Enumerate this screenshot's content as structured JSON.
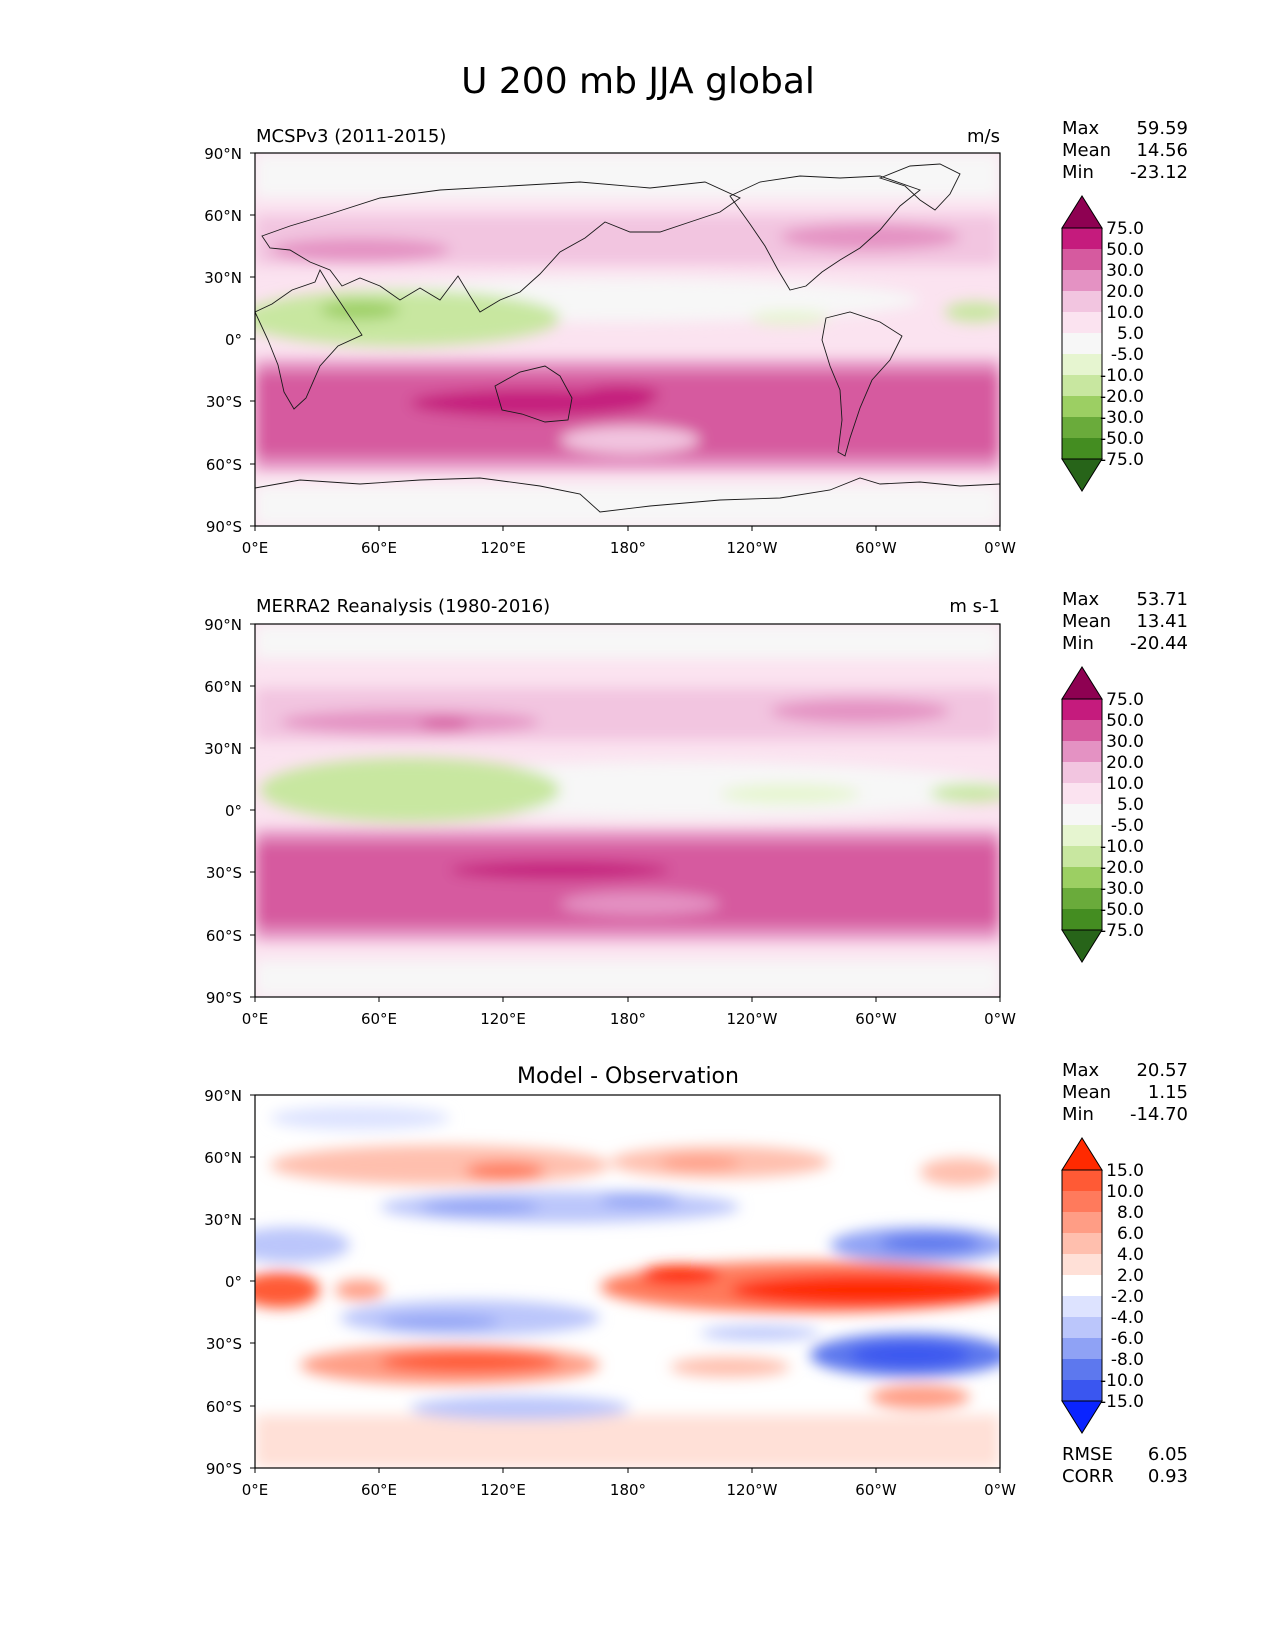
{
  "title": "U 200 mb JJA global",
  "panels": [
    {
      "id": "test",
      "title_left": "MCSPv3 (2011-2015)",
      "title_right": "m/s",
      "title_center": "",
      "stats": [
        {
          "label": "Max",
          "value": "59.59"
        },
        {
          "label": "Mean",
          "value": "14.56"
        },
        {
          "label": "Min",
          "value": "-23.12"
        }
      ],
      "colorbar": "wind"
    },
    {
      "id": "reference",
      "title_left": "MERRA2 Reanalysis (1980-2016)",
      "title_right": "m s-1",
      "title_center": "",
      "stats": [
        {
          "label": "Max",
          "value": "53.71"
        },
        {
          "label": "Mean",
          "value": "13.41"
        },
        {
          "label": "Min",
          "value": "-20.44"
        }
      ],
      "colorbar": "wind"
    },
    {
      "id": "difference",
      "title_left": "",
      "title_right": "",
      "title_center": "Model - Observation",
      "stats": [
        {
          "label": "Max",
          "value": "20.57"
        },
        {
          "label": "Mean",
          "value": "1.15"
        },
        {
          "label": "Min",
          "value": "-14.70"
        }
      ],
      "extra_stats": [
        {
          "label": "RMSE",
          "value": "6.05"
        },
        {
          "label": "CORR",
          "value": "0.93"
        }
      ],
      "colorbar": "diff"
    }
  ],
  "chart_data": [
    {
      "type": "heatmap",
      "subtype": "filled-contour map",
      "title": "MCSPv3 (2011-2015)",
      "units": "m/s",
      "x_ticks": [
        "0°E",
        "60°E",
        "120°E",
        "180°",
        "120°W",
        "60°W",
        "0°W"
      ],
      "y_ticks": [
        "90°N",
        "60°N",
        "30°N",
        "0°",
        "30°S",
        "60°S",
        "90°S"
      ],
      "xlim": [
        0,
        360
      ],
      "ylim": [
        -90,
        90
      ],
      "stats": {
        "max": 59.59,
        "mean": 14.56,
        "min": -23.12
      },
      "features": [
        {
          "lon": [
            85,
            125
          ],
          "lat": [
            -36,
            -22
          ],
          "value": 55
        },
        {
          "lon": [
            190,
            240
          ],
          "lat": [
            -32,
            -20
          ],
          "value": 52
        },
        {
          "lon": [
            0,
            360
          ],
          "lat": [
            -50,
            -20
          ],
          "value": 35
        },
        {
          "lon": [
            20,
            70
          ],
          "lat": [
            40,
            48
          ],
          "value": 32
        },
        {
          "lon": [
            270,
            330
          ],
          "lat": [
            42,
            50
          ],
          "value": 28
        },
        {
          "lon": [
            20,
            120
          ],
          "lat": [
            0,
            20
          ],
          "value": -18
        },
        {
          "lon": [
            310,
            360
          ],
          "lat": [
            5,
            15
          ],
          "value": -10
        }
      ]
    },
    {
      "type": "heatmap",
      "subtype": "filled-contour map",
      "title": "MERRA2 Reanalysis (1980-2016)",
      "units": "m s-1",
      "x_ticks": [
        "0°E",
        "60°E",
        "120°E",
        "180°",
        "120°W",
        "60°W",
        "0°W"
      ],
      "y_ticks": [
        "90°N",
        "60°N",
        "30°N",
        "0°",
        "30°S",
        "60°S",
        "90°S"
      ],
      "xlim": [
        0,
        360
      ],
      "ylim": [
        -90,
        90
      ],
      "stats": {
        "max": 53.71,
        "mean": 13.41,
        "min": -20.44
      },
      "features": [
        {
          "lon": [
            100,
            190
          ],
          "lat": [
            -32,
            -25
          ],
          "value": 52
        },
        {
          "lon": [
            0,
            360
          ],
          "lat": [
            -50,
            -20
          ],
          "value": 35
        },
        {
          "lon": [
            40,
            90
          ],
          "lat": [
            40,
            46
          ],
          "value": 32
        },
        {
          "lon": [
            270,
            320
          ],
          "lat": [
            42,
            50
          ],
          "value": 26
        },
        {
          "lon": [
            20,
            130
          ],
          "lat": [
            0,
            25
          ],
          "value": -16
        },
        {
          "lon": [
            220,
            300
          ],
          "lat": [
            5,
            12
          ],
          "value": -8
        }
      ]
    },
    {
      "type": "heatmap",
      "subtype": "filled-contour map",
      "title": "Model - Observation",
      "units": "",
      "x_ticks": [
        "0°E",
        "60°E",
        "120°E",
        "180°",
        "120°W",
        "60°W",
        "0°W"
      ],
      "y_ticks": [
        "90°N",
        "60°N",
        "30°N",
        "0°",
        "30°S",
        "60°S",
        "90°S"
      ],
      "xlim": [
        0,
        360
      ],
      "ylim": [
        -90,
        90
      ],
      "stats": {
        "max": 20.57,
        "mean": 1.15,
        "min": -14.7,
        "rmse": 6.05,
        "corr": 0.93
      },
      "features": [
        {
          "lon": [
            180,
            360
          ],
          "lat": [
            -8,
            8
          ],
          "value": 16
        },
        {
          "lon": [
            0,
            20
          ],
          "lat": [
            -5,
            5
          ],
          "value": 15
        },
        {
          "lon": [
            70,
            150
          ],
          "lat": [
            -40,
            -25
          ],
          "value": 12
        },
        {
          "lon": [
            90,
            130
          ],
          "lat": [
            45,
            55
          ],
          "value": 10
        },
        {
          "lon": [
            190,
            240
          ],
          "lat": [
            50,
            60
          ],
          "value": 9
        },
        {
          "lon": [
            290,
            350
          ],
          "lat": [
            -35,
            -25
          ],
          "value": -12
        },
        {
          "lon": [
            300,
            350
          ],
          "lat": [
            15,
            25
          ],
          "value": -11
        },
        {
          "lon": [
            90,
            200
          ],
          "lat": [
            25,
            35
          ],
          "value": -8
        },
        {
          "lon": [
            60,
            150
          ],
          "lat": [
            -20,
            -10
          ],
          "value": -7
        }
      ]
    }
  ],
  "colorbars": {
    "wind": {
      "labels": [
        "75.0",
        "50.0",
        "30.0",
        "20.0",
        "10.0",
        "5.0",
        "-5.0",
        "-10.0",
        "-20.0",
        "-30.0",
        "-50.0",
        "-75.0"
      ],
      "colors": [
        "#8e0152",
        "#c51b7d",
        "#d65a9f",
        "#e492c3",
        "#f2c5e0",
        "#fbe3f0",
        "#f7f7f7",
        "#e6f5d0",
        "#c8e7a0",
        "#9ccf63",
        "#6aab3b",
        "#448d21",
        "#276419"
      ]
    },
    "diff": {
      "labels": [
        "15.0",
        "10.0",
        "8.0",
        "6.0",
        "4.0",
        "2.0",
        "-2.0",
        "-4.0",
        "-6.0",
        "-8.0",
        "-10.0",
        "-15.0"
      ],
      "colors": [
        "#ff2a00",
        "#ff5a35",
        "#ff7a5c",
        "#ff9d85",
        "#ffbfae",
        "#ffe0d7",
        "#ffffff",
        "#dde3ff",
        "#bbc6fb",
        "#8fa2f5",
        "#5d78ee",
        "#3a56f0",
        "#0a24ff"
      ]
    }
  },
  "colors": {
    "text": "#000000",
    "coast": "#1a1a1a",
    "background": "#ffffff"
  }
}
